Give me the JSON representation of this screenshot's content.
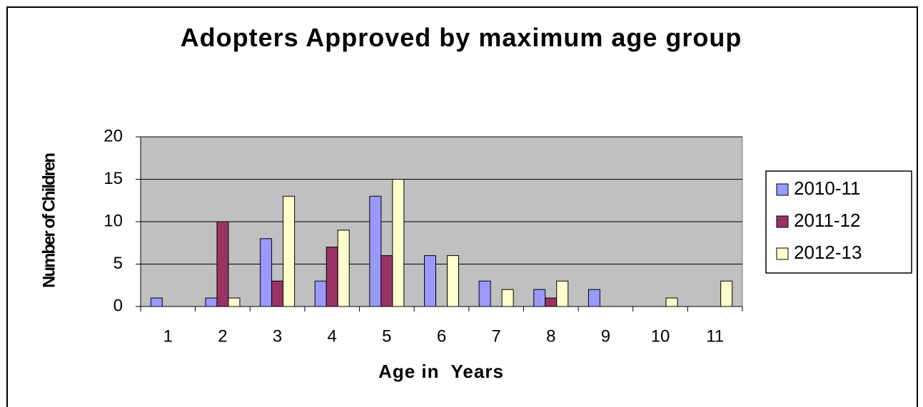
{
  "chart_data": {
    "type": "bar",
    "title": "Adopters Approved by maximum age group",
    "x_label": "Age in  Years",
    "y_label": "Number of Children",
    "categories": [
      "1",
      "2",
      "3",
      "4",
      "5",
      "6",
      "7",
      "8",
      "9",
      "10",
      "11"
    ],
    "series": [
      {
        "name": "2010-11",
        "color": "#9999ff",
        "values": [
          1,
          1,
          8,
          3,
          13,
          6,
          3,
          2,
          2,
          0,
          0
        ]
      },
      {
        "name": "2011-12",
        "color": "#993366",
        "values": [
          0,
          10,
          3,
          7,
          6,
          0,
          0,
          1,
          0,
          0,
          0
        ]
      },
      {
        "name": "2012-13",
        "color": "#ffffcc",
        "values": [
          0,
          1,
          13,
          9,
          15,
          6,
          2,
          3,
          0,
          1,
          3
        ]
      }
    ],
    "ylim": [
      0,
      20
    ],
    "yticks": [
      0,
      5,
      10,
      15,
      20
    ],
    "grid": true,
    "legend": "right"
  }
}
